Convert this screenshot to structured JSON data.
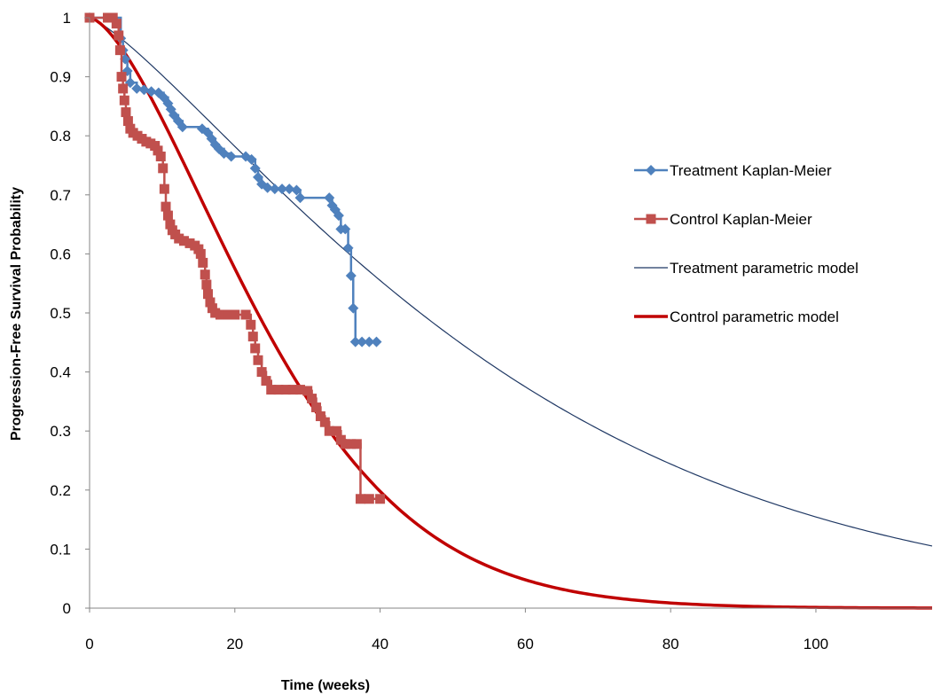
{
  "chart_data": {
    "type": "line",
    "title": "",
    "xlabel": "Time (weeks)",
    "ylabel": "Progression-Free Survival Probability",
    "xlim": [
      0,
      116
    ],
    "ylim": [
      0,
      1
    ],
    "x_ticks": [
      0,
      20,
      40,
      60,
      80,
      100
    ],
    "y_ticks": [
      0,
      0.1,
      0.2,
      0.3,
      0.4,
      0.5,
      0.6,
      0.7,
      0.8,
      0.9,
      1
    ],
    "grid": false,
    "legend_position": "right",
    "series": [
      {
        "name": "Treatment Kaplan-Meier",
        "color": "#4F81BD",
        "marker": "diamond",
        "step": true,
        "points": [
          [
            0,
            1
          ],
          [
            4.3,
            0.965
          ],
          [
            4.6,
            0.945
          ],
          [
            4.9,
            0.93
          ],
          [
            5.2,
            0.91
          ],
          [
            5.6,
            0.89
          ],
          [
            6.5,
            0.88
          ],
          [
            7.5,
            0.878
          ],
          [
            8.5,
            0.875
          ],
          [
            9.5,
            0.873
          ],
          [
            10.2,
            0.865
          ],
          [
            10.8,
            0.855
          ],
          [
            11.2,
            0.845
          ],
          [
            11.6,
            0.835
          ],
          [
            12.2,
            0.825
          ],
          [
            12.8,
            0.815
          ],
          [
            15.5,
            0.812
          ],
          [
            16.3,
            0.805
          ],
          [
            16.8,
            0.795
          ],
          [
            17.3,
            0.785
          ],
          [
            17.8,
            0.778
          ],
          [
            18.5,
            0.77
          ],
          [
            19.5,
            0.765
          ],
          [
            21.5,
            0.765
          ],
          [
            22.3,
            0.76
          ],
          [
            22.8,
            0.745
          ],
          [
            23.2,
            0.73
          ],
          [
            23.7,
            0.718
          ],
          [
            24.5,
            0.712
          ],
          [
            25.5,
            0.71
          ],
          [
            26.5,
            0.71
          ],
          [
            27.5,
            0.71
          ],
          [
            28.5,
            0.708
          ],
          [
            29,
            0.695
          ],
          [
            33,
            0.695
          ],
          [
            33.4,
            0.682
          ],
          [
            33.8,
            0.675
          ],
          [
            34.3,
            0.665
          ],
          [
            34.6,
            0.642
          ],
          [
            35.2,
            0.642
          ],
          [
            35.6,
            0.61
          ],
          [
            36,
            0.563
          ],
          [
            36.3,
            0.508
          ],
          [
            36.6,
            0.451
          ],
          [
            37.5,
            0.451
          ],
          [
            38.5,
            0.451
          ],
          [
            39.5,
            0.451
          ]
        ]
      },
      {
        "name": "Control Kaplan-Meier",
        "color": "#C0504D",
        "marker": "square",
        "step": true,
        "points": [
          [
            0,
            1
          ],
          [
            2.5,
            1
          ],
          [
            3.2,
            1
          ],
          [
            3.7,
            0.99
          ],
          [
            4,
            0.97
          ],
          [
            4.2,
            0.945
          ],
          [
            4.4,
            0.9
          ],
          [
            4.6,
            0.88
          ],
          [
            4.8,
            0.86
          ],
          [
            5,
            0.84
          ],
          [
            5.3,
            0.825
          ],
          [
            5.6,
            0.812
          ],
          [
            6,
            0.805
          ],
          [
            6.6,
            0.8
          ],
          [
            7.2,
            0.795
          ],
          [
            7.8,
            0.79
          ],
          [
            8.4,
            0.787
          ],
          [
            9,
            0.783
          ],
          [
            9.4,
            0.775
          ],
          [
            9.8,
            0.765
          ],
          [
            10.1,
            0.745
          ],
          [
            10.3,
            0.71
          ],
          [
            10.5,
            0.68
          ],
          [
            10.8,
            0.665
          ],
          [
            11.1,
            0.65
          ],
          [
            11.4,
            0.64
          ],
          [
            11.8,
            0.633
          ],
          [
            12.3,
            0.626
          ],
          [
            13,
            0.622
          ],
          [
            13.8,
            0.618
          ],
          [
            14.5,
            0.614
          ],
          [
            15,
            0.608
          ],
          [
            15.3,
            0.6
          ],
          [
            15.6,
            0.585
          ],
          [
            15.9,
            0.565
          ],
          [
            16.1,
            0.548
          ],
          [
            16.3,
            0.532
          ],
          [
            16.6,
            0.518
          ],
          [
            16.9,
            0.508
          ],
          [
            17.3,
            0.5
          ],
          [
            18,
            0.497
          ],
          [
            19,
            0.497
          ],
          [
            20,
            0.497
          ],
          [
            21.5,
            0.497
          ],
          [
            22.2,
            0.48
          ],
          [
            22.5,
            0.46
          ],
          [
            22.8,
            0.44
          ],
          [
            23.2,
            0.42
          ],
          [
            23.7,
            0.4
          ],
          [
            24.3,
            0.385
          ],
          [
            25,
            0.37
          ],
          [
            26,
            0.37
          ],
          [
            27,
            0.37
          ],
          [
            28,
            0.37
          ],
          [
            29,
            0.37
          ],
          [
            30,
            0.368
          ],
          [
            30.6,
            0.355
          ],
          [
            31.2,
            0.34
          ],
          [
            31.8,
            0.325
          ],
          [
            32.4,
            0.315
          ],
          [
            33,
            0.3
          ],
          [
            34,
            0.3
          ],
          [
            34.6,
            0.285
          ],
          [
            35.2,
            0.278
          ],
          [
            36,
            0.278
          ],
          [
            36.8,
            0.278
          ],
          [
            37.3,
            0.185
          ],
          [
            38.5,
            0.185
          ],
          [
            40,
            0.185
          ]
        ]
      },
      {
        "name": "Treatment parametric model",
        "color": "#1F3864",
        "marker": "none",
        "model": {
          "form": "weibull",
          "scale": 60.9,
          "shape": 1.26
        }
      },
      {
        "name": "Control parametric model",
        "color": "#C00000",
        "marker": "none",
        "model": {
          "form": "weibull",
          "scale": 29.3,
          "shape": 1.55
        }
      }
    ]
  }
}
